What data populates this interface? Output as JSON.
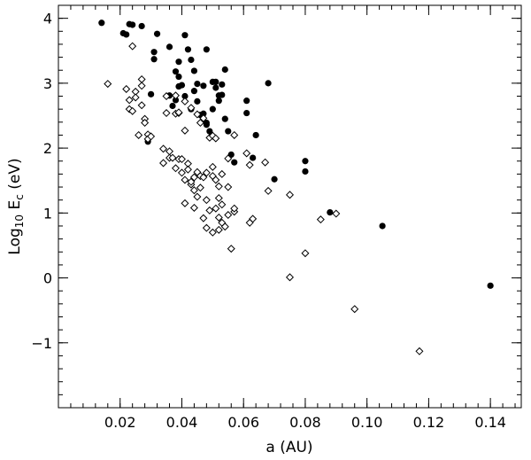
{
  "chart_data": {
    "type": "scatter",
    "title": "",
    "xlabel": "a (AU)",
    "ylabel_main": "Log",
    "ylabel_sub": "10",
    "ylabel_var": "E",
    "ylabel_var_sub": "c",
    "ylabel_unit": "(eV)",
    "xlim": [
      0.0,
      0.15
    ],
    "ylim": [
      -2.0,
      4.2
    ],
    "x_ticks": [
      0.02,
      0.04,
      0.06,
      0.08,
      0.1,
      0.12,
      0.14
    ],
    "x_tick_labels": [
      "0.02",
      "0.04",
      "0.06",
      "0.08",
      "0.10",
      "0.12",
      "0.14"
    ],
    "y_ticks": [
      -1,
      0,
      1,
      2,
      3,
      4
    ],
    "y_tick_labels": [
      "−1",
      "0",
      "1",
      "2",
      "3",
      "4"
    ],
    "x_minor_step": 0.004,
    "y_minor_step": 0.2,
    "grid": false,
    "series": [
      {
        "marker": "filled-circle",
        "color": "#000000",
        "points": [
          [
            0.014,
            3.93
          ],
          [
            0.021,
            3.77
          ],
          [
            0.022,
            3.75
          ],
          [
            0.023,
            3.91
          ],
          [
            0.024,
            3.9
          ],
          [
            0.027,
            3.88
          ],
          [
            0.029,
            2.1
          ],
          [
            0.03,
            2.83
          ],
          [
            0.031,
            3.48
          ],
          [
            0.031,
            3.37
          ],
          [
            0.032,
            3.76
          ],
          [
            0.036,
            2.81
          ],
          [
            0.036,
            3.56
          ],
          [
            0.037,
            2.65
          ],
          [
            0.038,
            2.74
          ],
          [
            0.038,
            3.18
          ],
          [
            0.039,
            2.95
          ],
          [
            0.039,
            3.33
          ],
          [
            0.039,
            3.1
          ],
          [
            0.04,
            2.97
          ],
          [
            0.041,
            2.8
          ],
          [
            0.041,
            3.74
          ],
          [
            0.042,
            3.52
          ],
          [
            0.043,
            3.36
          ],
          [
            0.043,
            2.6
          ],
          [
            0.044,
            2.88
          ],
          [
            0.044,
            3.19
          ],
          [
            0.045,
            2.72
          ],
          [
            0.045,
            2.99
          ],
          [
            0.046,
            2.51
          ],
          [
            0.047,
            2.53
          ],
          [
            0.047,
            2.96
          ],
          [
            0.048,
            2.39
          ],
          [
            0.048,
            2.36
          ],
          [
            0.048,
            3.52
          ],
          [
            0.049,
            2.26
          ],
          [
            0.05,
            2.6
          ],
          [
            0.05,
            3.02
          ],
          [
            0.051,
            3.02
          ],
          [
            0.051,
            2.93
          ],
          [
            0.052,
            2.81
          ],
          [
            0.052,
            2.73
          ],
          [
            0.053,
            2.82
          ],
          [
            0.053,
            2.98
          ],
          [
            0.054,
            3.21
          ],
          [
            0.054,
            2.45
          ],
          [
            0.055,
            2.26
          ],
          [
            0.056,
            1.9
          ],
          [
            0.057,
            1.78
          ],
          [
            0.061,
            2.73
          ],
          [
            0.061,
            2.54
          ],
          [
            0.063,
            1.85
          ],
          [
            0.064,
            2.2
          ],
          [
            0.068,
            3.0
          ],
          [
            0.07,
            1.52
          ],
          [
            0.08,
            1.8
          ],
          [
            0.08,
            1.64
          ],
          [
            0.088,
            1.01
          ],
          [
            0.105,
            0.8
          ],
          [
            0.14,
            -0.12
          ]
        ]
      },
      {
        "marker": "open-diamond",
        "color": "#000000",
        "points": [
          [
            0.016,
            2.99
          ],
          [
            0.022,
            2.91
          ],
          [
            0.023,
            2.6
          ],
          [
            0.023,
            2.74
          ],
          [
            0.024,
            2.57
          ],
          [
            0.024,
            3.57
          ],
          [
            0.025,
            2.87
          ],
          [
            0.025,
            2.78
          ],
          [
            0.026,
            2.2
          ],
          [
            0.027,
            3.06
          ],
          [
            0.027,
            2.96
          ],
          [
            0.027,
            2.66
          ],
          [
            0.028,
            2.45
          ],
          [
            0.028,
            2.39
          ],
          [
            0.029,
            2.21
          ],
          [
            0.029,
            2.14
          ],
          [
            0.03,
            2.18
          ],
          [
            0.034,
            1.99
          ],
          [
            0.034,
            1.77
          ],
          [
            0.035,
            2.8
          ],
          [
            0.035,
            2.54
          ],
          [
            0.036,
            1.85
          ],
          [
            0.036,
            1.95
          ],
          [
            0.037,
            1.85
          ],
          [
            0.038,
            2.81
          ],
          [
            0.038,
            2.53
          ],
          [
            0.038,
            1.69
          ],
          [
            0.039,
            2.54
          ],
          [
            0.039,
            2.55
          ],
          [
            0.039,
            1.83
          ],
          [
            0.04,
            1.62
          ],
          [
            0.04,
            1.83
          ],
          [
            0.041,
            2.27
          ],
          [
            0.041,
            1.51
          ],
          [
            0.041,
            1.15
          ],
          [
            0.041,
            2.72
          ],
          [
            0.042,
            1.76
          ],
          [
            0.042,
            1.67
          ],
          [
            0.043,
            1.44
          ],
          [
            0.043,
            1.48
          ],
          [
            0.043,
            2.62
          ],
          [
            0.044,
            1.08
          ],
          [
            0.044,
            1.35
          ],
          [
            0.044,
            1.55
          ],
          [
            0.045,
            1.63
          ],
          [
            0.045,
            1.25
          ],
          [
            0.045,
            2.52
          ],
          [
            0.046,
            1.39
          ],
          [
            0.046,
            1.57
          ],
          [
            0.046,
            2.39
          ],
          [
            0.047,
            1.55
          ],
          [
            0.047,
            2.46
          ],
          [
            0.047,
            0.92
          ],
          [
            0.048,
            1.2
          ],
          [
            0.048,
            1.62
          ],
          [
            0.048,
            0.77
          ],
          [
            0.049,
            2.16
          ],
          [
            0.049,
            1.04
          ],
          [
            0.05,
            1.57
          ],
          [
            0.05,
            0.7
          ],
          [
            0.05,
            1.71
          ],
          [
            0.05,
            2.19
          ],
          [
            0.051,
            1.51
          ],
          [
            0.051,
            2.15
          ],
          [
            0.051,
            1.07
          ],
          [
            0.052,
            1.41
          ],
          [
            0.052,
            1.23
          ],
          [
            0.052,
            0.93
          ],
          [
            0.052,
            0.74
          ],
          [
            0.053,
            0.85
          ],
          [
            0.053,
            1.6
          ],
          [
            0.053,
            1.13
          ],
          [
            0.054,
            0.79
          ],
          [
            0.055,
            1.84
          ],
          [
            0.055,
            1.4
          ],
          [
            0.055,
            0.97
          ],
          [
            0.056,
            0.45
          ],
          [
            0.057,
            2.2
          ],
          [
            0.057,
            1.02
          ],
          [
            0.057,
            1.07
          ],
          [
            0.061,
            1.92
          ],
          [
            0.062,
            0.85
          ],
          [
            0.062,
            1.74
          ],
          [
            0.063,
            0.91
          ],
          [
            0.067,
            1.78
          ],
          [
            0.068,
            1.34
          ],
          [
            0.075,
            1.28
          ],
          [
            0.075,
            0.01
          ],
          [
            0.08,
            0.38
          ],
          [
            0.085,
            0.9
          ],
          [
            0.09,
            0.99
          ],
          [
            0.096,
            -0.48
          ],
          [
            0.117,
            -1.13
          ]
        ]
      }
    ]
  }
}
